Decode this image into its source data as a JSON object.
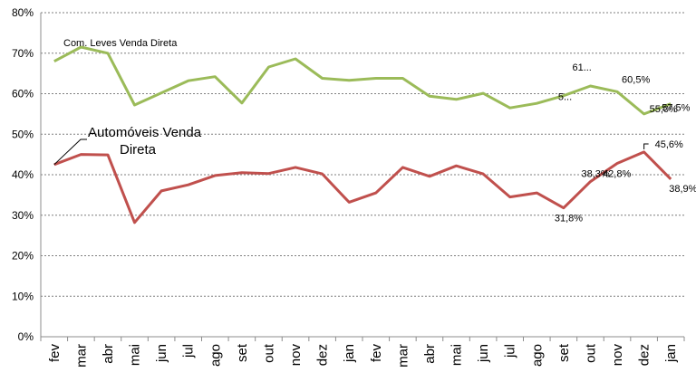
{
  "chart_data": {
    "type": "line",
    "title": "",
    "xlabel": "",
    "ylabel": "",
    "ylim": [
      0,
      80
    ],
    "y_ticks": [
      "0%",
      "10%",
      "20%",
      "30%",
      "40%",
      "50%",
      "60%",
      "70%",
      "80%"
    ],
    "grid": "horizontal dashed",
    "categories": [
      "fev",
      "mar",
      "abr",
      "mai",
      "jun",
      "jul",
      "ago",
      "set",
      "out",
      "nov",
      "dez",
      "jan",
      "fev",
      "mar",
      "abr",
      "mai",
      "jun",
      "jul",
      "ago",
      "set",
      "out",
      "nov",
      "dez",
      "jan"
    ],
    "series": [
      {
        "name": "Com. Leves Venda Direta",
        "color": "#9BBB59",
        "values": [
          68.0,
          71.5,
          70.0,
          57.2,
          60.2,
          63.2,
          64.2,
          57.7,
          66.6,
          68.6,
          63.8,
          63.3,
          63.8,
          63.8,
          59.4,
          58.6,
          60.1,
          56.5,
          57.6,
          59.5,
          61.9,
          60.5,
          55.0,
          57.5
        ],
        "data_labels": [
          {
            "index": 19,
            "text": "5..."
          },
          {
            "index": 20,
            "text": "61..."
          },
          {
            "index": 21,
            "text": "60,5%"
          },
          {
            "index": 22,
            "text": "55,0%"
          },
          {
            "index": 23,
            "text": "57,5%"
          }
        ]
      },
      {
        "name": "Automóveis Venda Direta",
        "color": "#C0504D",
        "values": [
          42.5,
          45.0,
          44.9,
          28.2,
          36.0,
          37.5,
          39.8,
          40.5,
          40.3,
          41.8,
          40.2,
          33.2,
          35.5,
          41.8,
          39.6,
          42.2,
          40.2,
          34.5,
          35.5,
          31.8,
          38.3,
          42.8,
          45.6,
          38.9
        ],
        "data_labels": [
          {
            "index": 19,
            "text": "31,8%"
          },
          {
            "index": 20,
            "text": "38,3%"
          },
          {
            "index": 21,
            "text": "42,8%"
          },
          {
            "index": 22,
            "text": "45,6%"
          },
          {
            "index": 23,
            "text": "38,9%"
          }
        ]
      }
    ],
    "series_labels": [
      {
        "series": 0,
        "lines": [
          "Com. Leves Venda Direta"
        ]
      },
      {
        "series": 1,
        "lines": [
          "Automóveis Venda",
          "Direta"
        ]
      }
    ]
  }
}
